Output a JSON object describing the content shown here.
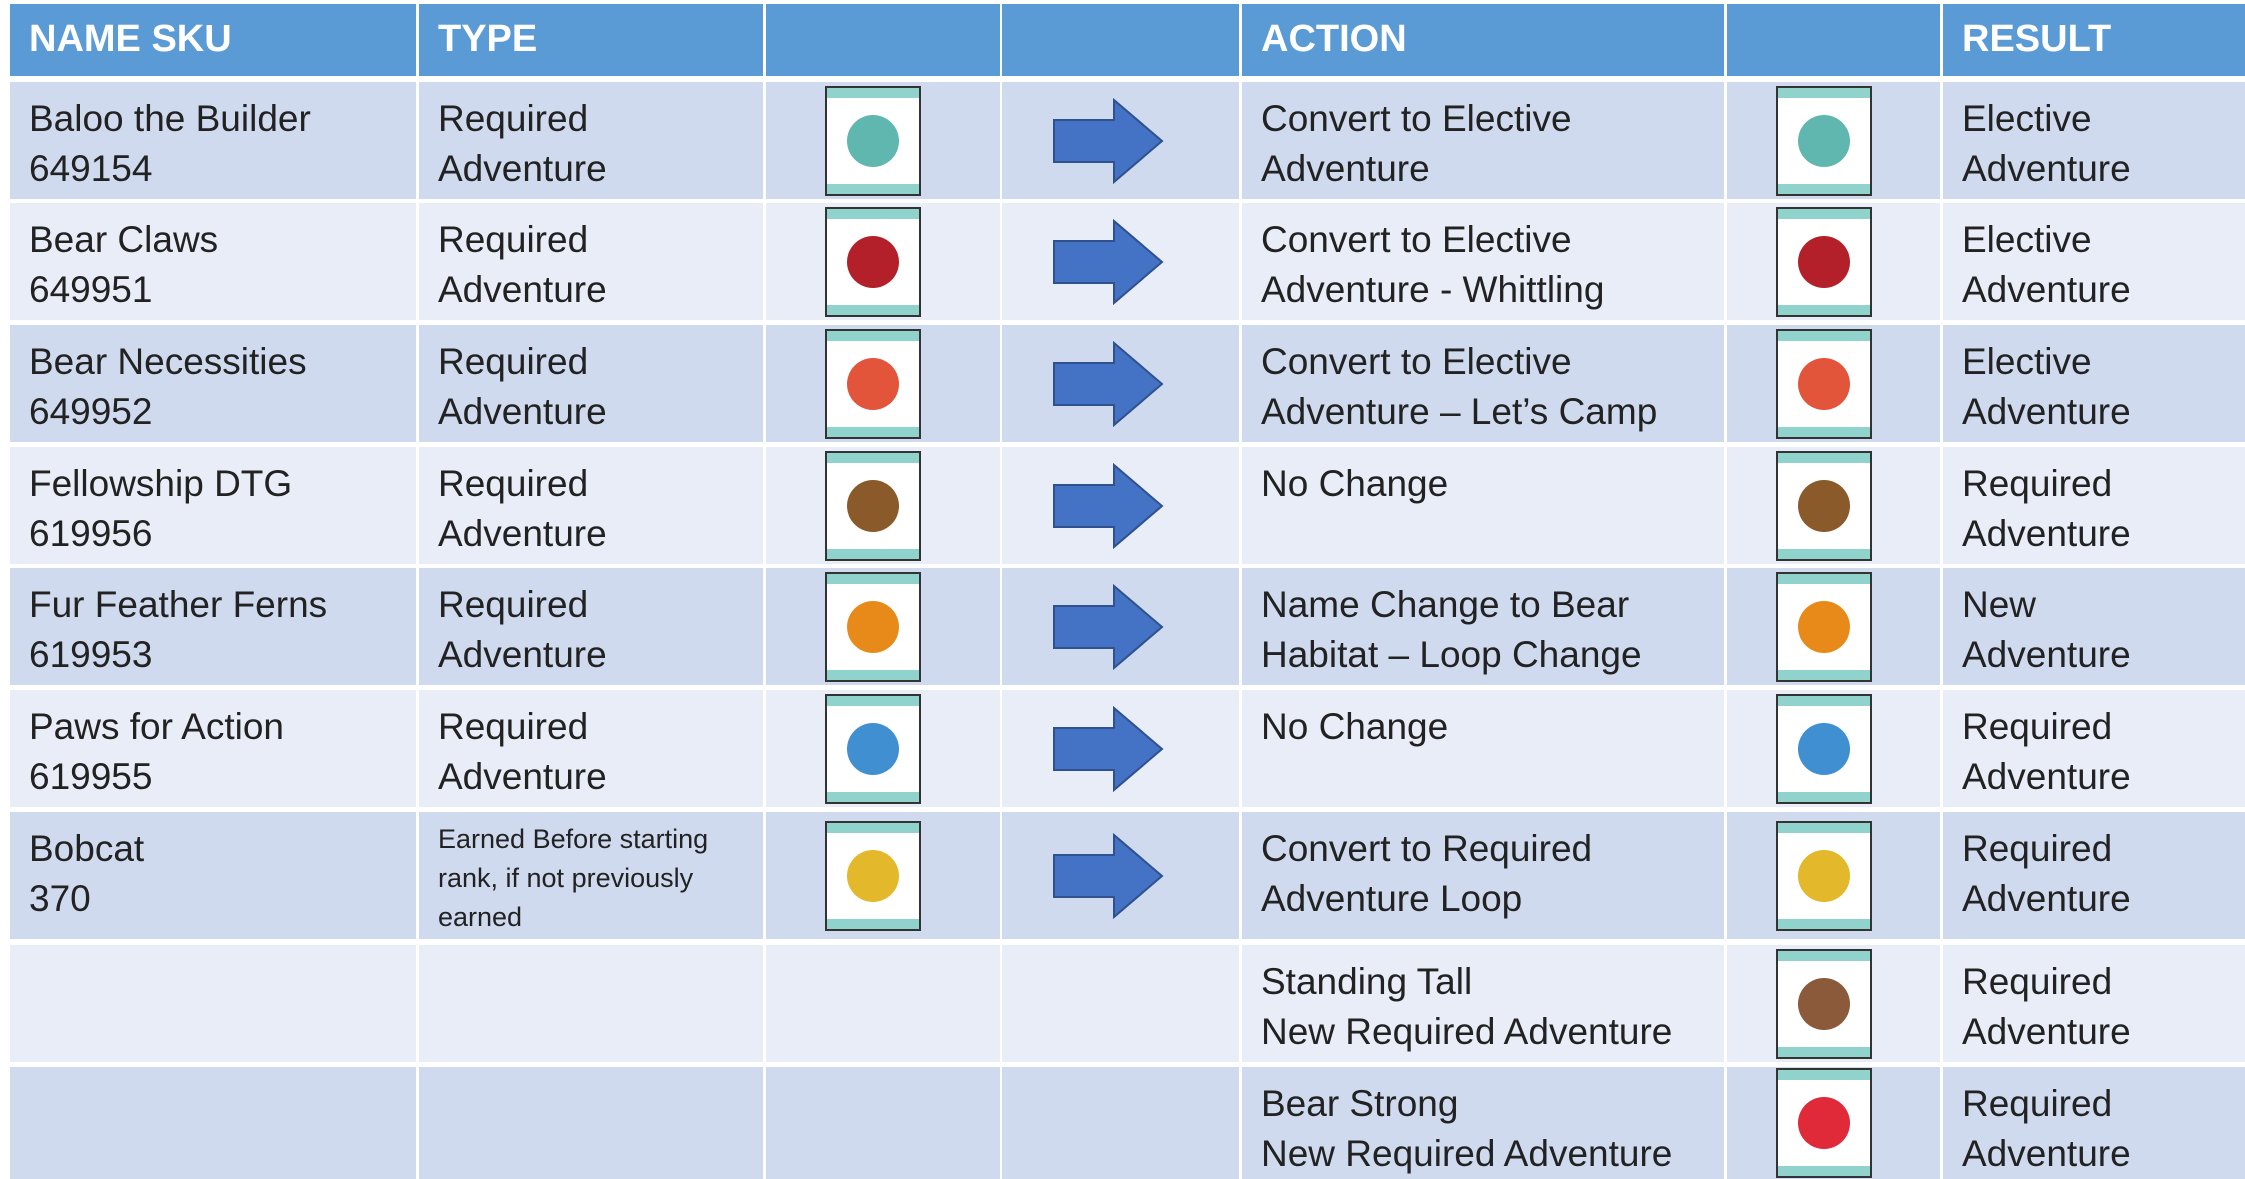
{
  "header": {
    "columns": [
      "NAME SKU",
      "TYPE",
      "ACTION",
      "RESULT"
    ]
  },
  "rows": [
    {
      "name": "Baloo the Builder",
      "sku": "649154",
      "type": [
        "Required",
        "Adventure"
      ],
      "action": [
        "Convert to Elective",
        "Adventure"
      ],
      "result": [
        "Elective",
        "Adventure"
      ]
    },
    {
      "name": "Bear Claws",
      "sku": "649951",
      "type": [
        "Required",
        "Adventure"
      ],
      "action": [
        "Convert to Elective",
        "Adventure - Whittling"
      ],
      "result": [
        "Elective",
        "Adventure"
      ]
    },
    {
      "name": "Bear Necessities",
      "sku": "649952",
      "type": [
        "Required",
        "Adventure"
      ],
      "action": [
        "Convert to Elective",
        "Adventure – Let’s Camp"
      ],
      "result": [
        "Elective",
        "Adventure"
      ]
    },
    {
      "name": "Fellowship DTG",
      "sku": "619956",
      "type": [
        "Required",
        "Adventure"
      ],
      "action": [
        "No Change"
      ],
      "result": [
        "Required",
        "Adventure"
      ]
    },
    {
      "name": "Fur Feather Ferns",
      "sku": "619953",
      "type": [
        "Required",
        "Adventure"
      ],
      "action": [
        "Name Change to Bear",
        "Habitat – Loop Change"
      ],
      "result": [
        "New",
        "Adventure"
      ]
    },
    {
      "name": "Paws for Action",
      "sku": "619955",
      "type": [
        "Required",
        "Adventure"
      ],
      "action": [
        "No Change"
      ],
      "result": [
        "Required",
        "Adventure"
      ]
    },
    {
      "name": "Bobcat",
      "sku": "370",
      "type": [
        "Earned Before starting",
        "rank, if not previously",
        "earned"
      ],
      "action": [
        "Convert to Required",
        "Adventure Loop"
      ],
      "result": [
        "Required",
        "Adventure"
      ]
    },
    {
      "action": [
        "Standing Tall",
        "New Required Adventure"
      ],
      "result": [
        "Required",
        "Adventure"
      ]
    },
    {
      "action": [
        "Bear Strong",
        "New Required Adventure"
      ],
      "result": [
        "Required",
        "Adventure"
      ]
    }
  ]
}
